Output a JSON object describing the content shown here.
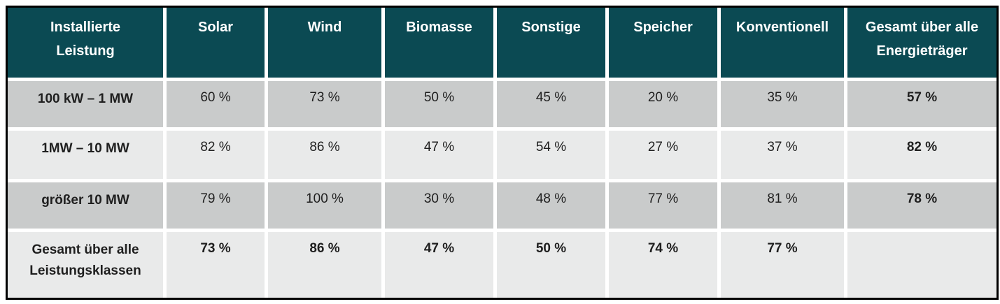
{
  "colors": {
    "header_bg": "#0b4a53",
    "header_text": "#ffffff",
    "row_dark": "#c9cbcb",
    "row_light": "#e9eaea",
    "outer_border": "#000000",
    "cell_text": "#1f1f1f",
    "gap": "#ffffff"
  },
  "chart_data": {
    "type": "table",
    "columns": [
      "Installierte Leistung",
      "Solar",
      "Wind",
      "Biomasse",
      "Sonstige",
      "Speicher",
      "Konventionell",
      "Gesamt über alle Energieträger"
    ],
    "rows": [
      {
        "label": "100 kW – 1 MW",
        "values": [
          "60 %",
          "73 %",
          "50 %",
          "45 %",
          "20 %",
          "35 %",
          "57 %"
        ]
      },
      {
        "label": "1MW – 10 MW",
        "values": [
          "82 %",
          "86 %",
          "47 %",
          "54 %",
          "27 %",
          "37 %",
          "82 %"
        ]
      },
      {
        "label": "größer 10 MW",
        "values": [
          "79 %",
          "100 %",
          "30 %",
          "48 %",
          "77 %",
          "81 %",
          "78 %"
        ]
      },
      {
        "label": "Gesamt über alle Leistungsklassen",
        "values": [
          "73 %",
          "86 %",
          "47 %",
          "50 %",
          "74 %",
          "77 %",
          ""
        ]
      }
    ]
  }
}
